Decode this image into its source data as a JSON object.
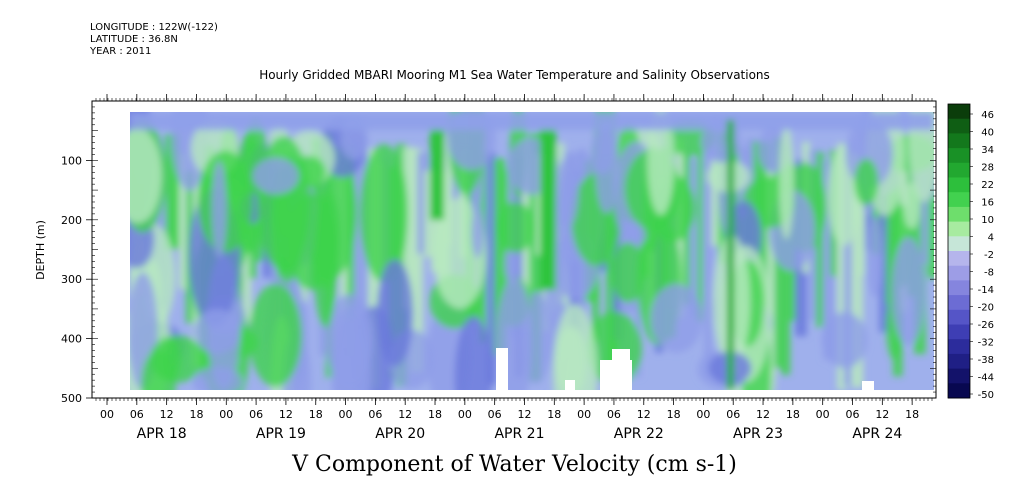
{
  "meta": {
    "longitude": "LONGITUDE : 122W(-122)",
    "latitude": "LATITUDE : 36.8N",
    "year": "YEAR : 2011"
  },
  "title": "Hourly Gridded MBARI Mooring M1 Sea Water Temperature and Salinity Observations",
  "bottom_title": "V Component of Water Velocity (cm s-1)",
  "chart_data": {
    "type": "heatmap",
    "ylabel": "DEPTH (m)",
    "y_ticks": [
      100,
      200,
      300,
      400,
      500
    ],
    "y_range": [
      0,
      500
    ],
    "y_inverted": true,
    "x_hour_ticks": [
      "00",
      "06",
      "12",
      "18",
      "00",
      "06",
      "12",
      "18",
      "00",
      "06",
      "12",
      "18",
      "00",
      "06",
      "12",
      "18",
      "00",
      "06",
      "12",
      "18",
      "00",
      "06",
      "12",
      "18",
      "00",
      "06",
      "12",
      "18"
    ],
    "x_day_labels": [
      "APR 18",
      "APR 19",
      "APR 20",
      "APR 21",
      "APR 22",
      "APR 23",
      "APR 24"
    ],
    "colorbar_labels": [
      "46",
      "40",
      "34",
      "28",
      "22",
      "16",
      "10",
      "4",
      "-2",
      "-8",
      "-14",
      "-20",
      "-26",
      "-32",
      "-38",
      "-44",
      "-50"
    ],
    "colorbar_colors": [
      "#0b3d0b",
      "#0f5e14",
      "#13781c",
      "#199126",
      "#22a830",
      "#2dbf3c",
      "#42d14f",
      "#6ede6c",
      "#a7eba0",
      "#c6e6d8",
      "#b5b5ec",
      "#9d9de6",
      "#8585de",
      "#6c6cd4",
      "#5555c7",
      "#3e3eb4",
      "#2c2c9c",
      "#1f1f85",
      "#13126a",
      "#080850"
    ],
    "data_description_colors": {
      "positive": "#3fd34c",
      "neutral": "#b8e8c0",
      "negative": "#8f9de8",
      "strong_negative": "#6a79dc",
      "missing": "#ffffff"
    }
  }
}
